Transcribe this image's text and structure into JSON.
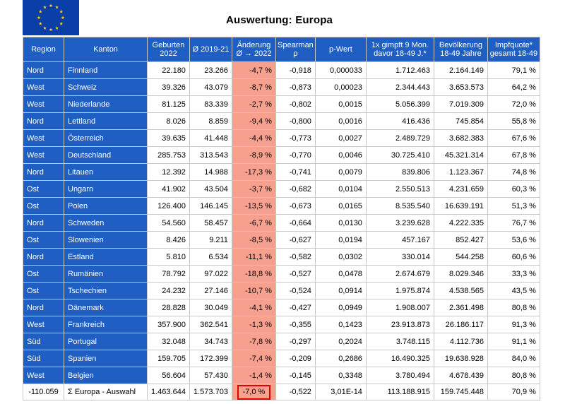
{
  "title": "Auswertung: Europa",
  "colors": {
    "header": "#1f5fc4",
    "change": "#f8a08e",
    "highlight": "#e00000",
    "flag_blue": "#0a3fa8",
    "flag_star": "#ffcc00"
  },
  "headers": [
    "Region",
    "Kanton",
    "Geburten 2022",
    "Ø 2019-21",
    "Änderung Ø → 2022",
    "Spearman ρ",
    "p-Wert",
    "1x gimpft 9 Mon. davor 18-49 J.*",
    "Bevölkerung 18-49 Jahre",
    "Impfquote* gesamt 18-49"
  ],
  "rows": [
    [
      "Nord",
      "Finnland",
      "22.180",
      "23.266",
      "-4,7 %",
      "-0,918",
      "0,000033",
      "1.712.463",
      "2.164.149",
      "79,1 %"
    ],
    [
      "West",
      "Schweiz",
      "39.326",
      "43.079",
      "-8,7 %",
      "-0,873",
      "0,00023",
      "2.344.443",
      "3.653.573",
      "64,2 %"
    ],
    [
      "West",
      "Niederlande",
      "81.125",
      "83.339",
      "-2,7 %",
      "-0,802",
      "0,0015",
      "5.056.399",
      "7.019.309",
      "72,0 %"
    ],
    [
      "Nord",
      "Lettland",
      "8.026",
      "8.859",
      "-9,4 %",
      "-0,800",
      "0,0016",
      "416.436",
      "745.854",
      "55,8 %"
    ],
    [
      "West",
      "Österreich",
      "39.635",
      "41.448",
      "-4,4 %",
      "-0,773",
      "0,0027",
      "2.489.729",
      "3.682.383",
      "67,6 %"
    ],
    [
      "West",
      "Deutschland",
      "285.753",
      "313.543",
      "-8,9 %",
      "-0,770",
      "0,0046",
      "30.725.410",
      "45.321.314",
      "67,8 %"
    ],
    [
      "Nord",
      "Litauen",
      "12.392",
      "14.988",
      "-17,3 %",
      "-0,741",
      "0,0079",
      "839.806",
      "1.123.367",
      "74,8 %"
    ],
    [
      "Ost",
      "Ungarn",
      "41.902",
      "43.504",
      "-3,7 %",
      "-0,682",
      "0,0104",
      "2.550.513",
      "4.231.659",
      "60,3 %"
    ],
    [
      "Ost",
      "Polen",
      "126.400",
      "146.145",
      "-13,5 %",
      "-0,673",
      "0,0165",
      "8.535.540",
      "16.639.191",
      "51,3 %"
    ],
    [
      "Nord",
      "Schweden",
      "54.560",
      "58.457",
      "-6,7 %",
      "-0,664",
      "0,0130",
      "3.239.628",
      "4.222.335",
      "76,7 %"
    ],
    [
      "Ost",
      "Slowenien",
      "8.426",
      "9.211",
      "-8,5 %",
      "-0,627",
      "0,0194",
      "457.167",
      "852.427",
      "53,6 %"
    ],
    [
      "Nord",
      "Estland",
      "5.810",
      "6.534",
      "-11,1 %",
      "-0,582",
      "0,0302",
      "330.014",
      "544.258",
      "60,6 %"
    ],
    [
      "Ost",
      "Rumänien",
      "78.792",
      "97.022",
      "-18,8 %",
      "-0,527",
      "0,0478",
      "2.674.679",
      "8.029.346",
      "33,3 %"
    ],
    [
      "Ost",
      "Tschechien",
      "24.232",
      "27.146",
      "-10,7 %",
      "-0,524",
      "0,0914",
      "1.975.874",
      "4.538.565",
      "43,5 %"
    ],
    [
      "Nord",
      "Dänemark",
      "28.828",
      "30.049",
      "-4,1 %",
      "-0,427",
      "0,0949",
      "1.908.007",
      "2.361.498",
      "80,8 %"
    ],
    [
      "West",
      "Frankreich",
      "357.900",
      "362.541",
      "-1,3 %",
      "-0,355",
      "0,1423",
      "23.913.873",
      "26.186.117",
      "91,3 %"
    ],
    [
      "Süd",
      "Portugal",
      "32.048",
      "34.743",
      "-7,8 %",
      "-0,297",
      "0,2024",
      "3.748.115",
      "4.112.736",
      "91,1 %"
    ],
    [
      "Süd",
      "Spanien",
      "159.705",
      "172.399",
      "-7,4 %",
      "-0,209",
      "0,2686",
      "16.490.325",
      "19.638.928",
      "84,0 %"
    ],
    [
      "West",
      "Belgien",
      "56.604",
      "57.430",
      "-1,4 %",
      "-0,145",
      "0,3348",
      "3.780.494",
      "4.678.439",
      "80,8 %"
    ]
  ],
  "total": [
    "-110.059",
    "Σ Europa - Auswahl",
    "1.463.644",
    "1.573.703",
    "-7,0 %",
    "-0,522",
    "3,01E-14",
    "113.188.915",
    "159.745.448",
    "70,9 %"
  ]
}
